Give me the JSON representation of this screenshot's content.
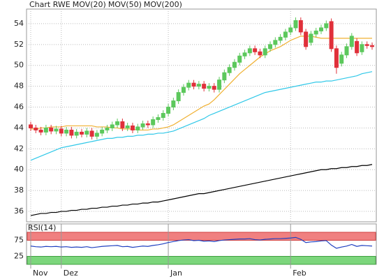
{
  "chart_data": {
    "type": "candlestick",
    "title": "Chart RWE",
    "title_color": "#e0303a",
    "up_color": "#5cc85c",
    "down_color": "#e0303a",
    "categories": [
      "Nov",
      null,
      null,
      null,
      null,
      null,
      "Dez",
      null,
      null,
      null,
      null,
      null,
      null,
      null,
      null,
      null,
      null,
      null,
      null,
      null,
      null,
      null,
      null,
      null,
      null,
      null,
      null,
      "Jan",
      null,
      null,
      null,
      null,
      null,
      null,
      null,
      null,
      null,
      null,
      null,
      null,
      null,
      null,
      null,
      null,
      null,
      null,
      null,
      null,
      null,
      null,
      null,
      "Feb",
      null,
      null,
      null,
      null,
      null,
      null,
      null,
      null,
      null,
      null,
      null,
      null,
      null,
      null,
      null,
      null
    ],
    "open": [
      44.3,
      44.0,
      43.8,
      43.6,
      44.0,
      43.7,
      43.9,
      43.5,
      43.8,
      43.3,
      43.6,
      43.4,
      43.7,
      43.2,
      43.5,
      43.8,
      44.0,
      44.3,
      44.6,
      44.0,
      44.2,
      43.8,
      44.1,
      44.4,
      44.3,
      44.8,
      45.0,
      45.4,
      46.0,
      46.6,
      47.4,
      47.9,
      48.3,
      48.0,
      48.2,
      47.8,
      48.0,
      47.7,
      48.6,
      49.3,
      49.8,
      50.3,
      50.9,
      51.2,
      51.6,
      51.3,
      51.0,
      51.6,
      52.0,
      52.4,
      52.7,
      53.2,
      53.6,
      54.3,
      53.2,
      52.2,
      53.0,
      53.3,
      53.6,
      54.2,
      51.6,
      50.2,
      51.0,
      51.8,
      52.3,
      51.3,
      52.0,
      51.9
    ],
    "high": [
      44.6,
      44.3,
      44.1,
      44.3,
      44.3,
      44.2,
      44.2,
      44.1,
      44.1,
      43.9,
      43.9,
      44.0,
      44.0,
      43.8,
      44.1,
      44.3,
      44.6,
      44.9,
      44.9,
      44.5,
      44.5,
      44.4,
      44.7,
      44.7,
      45.1,
      45.3,
      45.7,
      46.3,
      46.9,
      47.7,
      48.2,
      48.6,
      48.6,
      48.5,
      48.5,
      48.3,
      48.3,
      48.9,
      49.6,
      50.1,
      50.6,
      51.2,
      51.5,
      51.9,
      51.9,
      51.6,
      51.9,
      52.3,
      52.7,
      53.0,
      53.5,
      53.9,
      54.6,
      54.6,
      53.5,
      53.3,
      53.6,
      53.9,
      54.3,
      54.5,
      51.9,
      51.3,
      52.1,
      53.1,
      52.6,
      52.3,
      52.3,
      52.2
    ],
    "low": [
      43.7,
      43.5,
      43.3,
      43.3,
      43.4,
      43.4,
      43.2,
      43.2,
      43.0,
      43.0,
      43.1,
      43.1,
      42.9,
      42.9,
      43.2,
      43.5,
      43.7,
      44.0,
      43.7,
      43.7,
      43.5,
      43.5,
      43.8,
      44.0,
      44.0,
      44.5,
      44.7,
      45.1,
      45.7,
      46.3,
      47.1,
      47.6,
      47.7,
      47.7,
      47.5,
      47.5,
      47.4,
      47.4,
      48.3,
      49.0,
      49.5,
      50.0,
      50.6,
      50.9,
      51.0,
      50.7,
      50.7,
      51.3,
      51.7,
      52.1,
      52.4,
      52.9,
      53.3,
      52.9,
      51.5,
      51.9,
      52.7,
      53.0,
      53.3,
      51.3,
      49.2,
      49.9,
      50.7,
      51.5,
      50.9,
      51.0,
      51.6,
      51.5
    ],
    "close": [
      44.0,
      43.8,
      43.6,
      44.0,
      43.7,
      43.9,
      43.5,
      43.8,
      43.3,
      43.6,
      43.4,
      43.7,
      43.2,
      43.5,
      43.8,
      44.0,
      44.3,
      44.6,
      44.0,
      44.2,
      43.8,
      44.1,
      44.4,
      44.3,
      44.8,
      45.0,
      45.4,
      46.0,
      46.6,
      47.4,
      47.9,
      48.3,
      48.0,
      48.2,
      47.8,
      48.0,
      47.7,
      48.6,
      49.3,
      49.8,
      50.3,
      50.9,
      51.2,
      51.6,
      51.3,
      51.0,
      51.6,
      52.0,
      52.4,
      52.7,
      53.2,
      53.6,
      54.3,
      53.2,
      51.8,
      53.0,
      53.3,
      53.6,
      54.0,
      51.6,
      49.8,
      51.0,
      51.8,
      52.8,
      51.2,
      52.0,
      51.9,
      51.8
    ],
    "series": [
      {
        "name": "MOV(20)",
        "color": "#f0b030",
        "values": [
          43.9,
          43.9,
          44.0,
          44.0,
          44.1,
          44.1,
          44.1,
          44.2,
          44.2,
          44.2,
          44.2,
          44.2,
          44.2,
          44.1,
          44.1,
          44.1,
          44.0,
          44.0,
          43.9,
          43.9,
          43.9,
          43.8,
          43.8,
          43.8,
          43.9,
          43.9,
          44.0,
          44.1,
          44.3,
          44.6,
          44.9,
          45.2,
          45.5,
          45.8,
          46.1,
          46.3,
          46.7,
          47.2,
          47.7,
          48.2,
          48.7,
          49.2,
          49.6,
          50.0,
          50.4,
          50.8,
          51.1,
          51.4,
          51.6,
          51.8,
          52.1,
          52.4,
          52.6,
          52.8,
          52.8,
          52.8,
          52.7,
          52.6,
          52.6,
          52.6,
          52.6,
          52.6,
          52.6,
          52.6,
          52.6,
          52.6,
          52.6,
          52.6
        ]
      },
      {
        "name": "MOV(50)",
        "color": "#30c8e8",
        "values": [
          40.9,
          41.1,
          41.3,
          41.5,
          41.7,
          41.9,
          42.1,
          42.2,
          42.3,
          42.4,
          42.5,
          42.6,
          42.7,
          42.8,
          42.9,
          43.0,
          43.0,
          43.1,
          43.1,
          43.2,
          43.2,
          43.3,
          43.3,
          43.4,
          43.4,
          43.5,
          43.5,
          43.6,
          43.7,
          43.9,
          44.1,
          44.3,
          44.5,
          44.7,
          44.9,
          45.2,
          45.4,
          45.6,
          45.8,
          46.0,
          46.2,
          46.4,
          46.6,
          46.8,
          47.0,
          47.2,
          47.4,
          47.5,
          47.6,
          47.7,
          47.8,
          47.9,
          48.0,
          48.1,
          48.2,
          48.3,
          48.4,
          48.4,
          48.5,
          48.5,
          48.6,
          48.7,
          48.8,
          48.9,
          49.0,
          49.2,
          49.3,
          49.4
        ]
      },
      {
        "name": "MOV(200)",
        "color": "#000000",
        "values": [
          35.6,
          35.7,
          35.8,
          35.8,
          35.9,
          35.9,
          36.0,
          36.0,
          36.1,
          36.1,
          36.2,
          36.2,
          36.3,
          36.3,
          36.4,
          36.4,
          36.5,
          36.5,
          36.6,
          36.6,
          36.7,
          36.7,
          36.8,
          36.8,
          36.9,
          36.9,
          37.0,
          37.1,
          37.2,
          37.3,
          37.4,
          37.5,
          37.6,
          37.7,
          37.7,
          37.8,
          37.9,
          38.0,
          38.1,
          38.2,
          38.3,
          38.4,
          38.5,
          38.6,
          38.7,
          38.8,
          38.9,
          39.0,
          39.1,
          39.2,
          39.3,
          39.4,
          39.5,
          39.6,
          39.7,
          39.8,
          39.9,
          40.0,
          40.0,
          40.1,
          40.1,
          40.2,
          40.2,
          40.3,
          40.3,
          40.4,
          40.4,
          40.5
        ]
      }
    ],
    "ylim": [
      35,
      55.4
    ],
    "yticks": [
      36,
      38,
      40,
      42,
      44,
      46,
      48,
      50,
      52,
      54
    ],
    "grid": true,
    "rsi": {
      "name": "RSI(14)",
      "color": "#2040c0",
      "values": [
        57,
        55,
        54,
        56,
        55,
        56,
        54,
        55,
        53,
        54,
        53,
        55,
        52,
        54,
        56,
        57,
        58,
        59,
        55,
        56,
        53,
        55,
        57,
        56,
        59,
        61,
        64,
        68,
        71,
        74,
        76,
        77,
        74,
        75,
        72,
        73,
        71,
        74,
        76,
        77,
        78,
        79,
        79,
        80,
        77,
        76,
        78,
        79,
        80,
        80,
        81,
        82,
        84,
        78,
        68,
        70,
        71,
        73,
        74,
        60,
        50,
        54,
        57,
        62,
        56,
        59,
        58,
        57
      ],
      "ylim": [
        0,
        100
      ],
      "yticks": [
        25,
        75
      ],
      "overbought_color": "#f08080",
      "oversold_color": "#7cd67c"
    }
  }
}
